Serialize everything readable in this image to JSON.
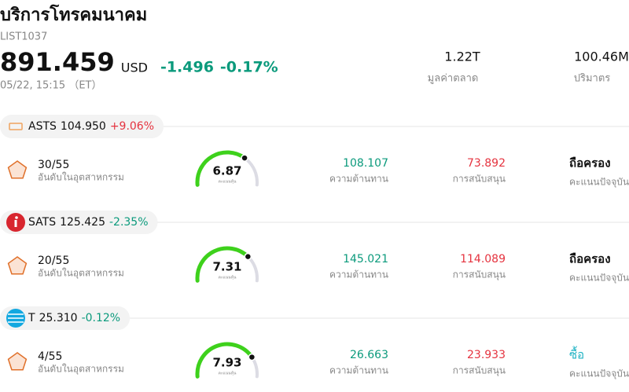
{
  "header": {
    "title": "บริการโทรคมนาคม",
    "code": "LIST1037",
    "price": "891.459",
    "currency": "USD",
    "change": "-1.496",
    "change_pct": "-0.17%",
    "time": "05/22, 15:15 （ET）",
    "stats": [
      {
        "value": "1.22T",
        "label": "มูลค่าตลาด"
      },
      {
        "value": "100.46M",
        "label": "ปริมาตร"
      }
    ]
  },
  "stocks": [
    {
      "ticker": "ASTS",
      "price": "104.950",
      "change": "+9.06%",
      "rank": "30/55",
      "rank_label": "อันดับในอุตสาหกรรม",
      "score": 6.87,
      "score_label": "คะแนนหุ้น",
      "resistance": "108.107",
      "resistance_label": "ความต้านทาน",
      "support": "73.892",
      "support_label": "การสนับสนุน",
      "rating": "ถือครอง",
      "rating_label": "คะแนนปัจจุบัน",
      "rating_color": "#111111"
    },
    {
      "ticker": "SATS",
      "price": "125.425",
      "change": "-2.35%",
      "rank": "20/55",
      "rank_label": "อันดับในอุตสาหกรรม",
      "score": 7.31,
      "score_label": "คะแนนหุ้น",
      "resistance": "145.021",
      "resistance_label": "ความต้านทาน",
      "support": "114.089",
      "support_label": "การสนับสนุน",
      "rating": "ถือครอง",
      "rating_label": "คะแนนปัจจุบัน",
      "rating_color": "#111111"
    },
    {
      "ticker": "T",
      "price": "25.310",
      "change": "-0.12%",
      "rank": "4/55",
      "rank_label": "อันดับในอุตสาหกรรม",
      "score": 7.93,
      "score_label": "คะแนนหุ้น",
      "resistance": "26.663",
      "resistance_label": "ความต้านทาน",
      "support": "23.933",
      "support_label": "การสนับสนุน",
      "rating": "ซื้อ",
      "rating_label": "คะแนนปัจจุบัน",
      "rating_color": "#1fb3c4"
    }
  ]
}
